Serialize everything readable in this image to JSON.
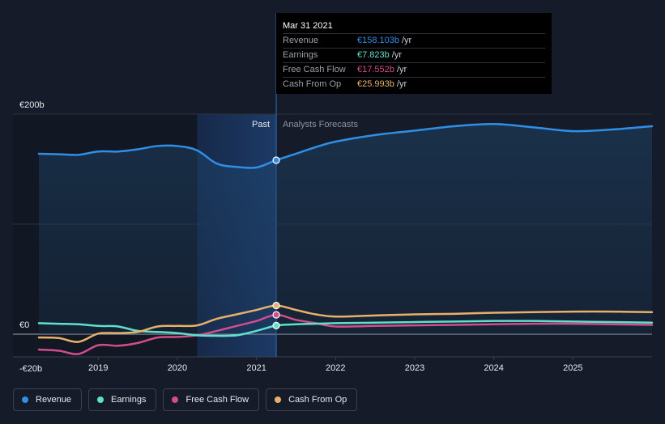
{
  "chart_data": {
    "type": "line",
    "y_unit_labels": [
      "€200b",
      "€0",
      "-€20b"
    ],
    "ylim": [
      -20,
      200
    ],
    "xlim": [
      2018.25,
      2026.0
    ],
    "x_ticks": [
      "2019",
      "2020",
      "2021",
      "2022",
      "2023",
      "2024",
      "2025"
    ],
    "x_tick_values": [
      2019,
      2020,
      2021,
      2022,
      2023,
      2024,
      2025
    ],
    "divider_x": 2021.25,
    "highlight_start_x": 2020.25,
    "past_label": "Past",
    "forecast_label": "Analysts Forecasts",
    "grid": true,
    "legend_position": "bottom-left",
    "series": [
      {
        "name": "Revenue",
        "color": "#2f8fe6",
        "x": [
          2018.25,
          2018.5,
          2018.75,
          2019.0,
          2019.25,
          2019.5,
          2019.75,
          2020.0,
          2020.25,
          2020.5,
          2020.75,
          2021.0,
          2021.25,
          2021.5,
          2021.75,
          2022.0,
          2022.5,
          2023.0,
          2023.5,
          2024.0,
          2024.5,
          2025.0,
          2025.5,
          2026.0
        ],
        "values": [
          164,
          163.5,
          163,
          166,
          166,
          168,
          171,
          171,
          167,
          155,
          152,
          151.5,
          158.1,
          164,
          170,
          175,
          181,
          185,
          189,
          191,
          188,
          184.5,
          186,
          189
        ]
      },
      {
        "name": "Earnings",
        "color": "#5fe0cf",
        "x": [
          2018.25,
          2018.5,
          2018.75,
          2019.0,
          2019.25,
          2019.5,
          2019.75,
          2020.0,
          2020.25,
          2020.5,
          2020.75,
          2021.0,
          2021.25,
          2021.5,
          2021.75,
          2022.0,
          2022.5,
          2023.0,
          2023.5,
          2024.0,
          2024.5,
          2025.0,
          2025.5,
          2026.0
        ],
        "values": [
          10,
          9.5,
          9,
          7.5,
          7,
          3,
          2,
          1,
          -1,
          -1.5,
          -1,
          3,
          7.8,
          9,
          9.5,
          10,
          10.5,
          11,
          11.5,
          12,
          12,
          11.5,
          11,
          10.5
        ]
      },
      {
        "name": "Free Cash Flow",
        "color": "#d14d8c",
        "x": [
          2018.25,
          2018.5,
          2018.75,
          2019.0,
          2019.25,
          2019.5,
          2019.75,
          2020.0,
          2020.25,
          2020.5,
          2020.75,
          2021.0,
          2021.25,
          2021.5,
          2021.75,
          2022.0,
          2022.5,
          2023.0,
          2023.5,
          2024.0,
          2024.5,
          2025.0,
          2025.5,
          2026.0
        ],
        "values": [
          -14,
          -15,
          -18,
          -10,
          -10.5,
          -8,
          -3,
          -2.5,
          -1,
          3,
          7.5,
          12,
          17.6,
          13,
          10,
          7,
          7.5,
          8,
          8.5,
          9,
          9.5,
          9.5,
          9,
          8.5
        ]
      },
      {
        "name": "Cash From Op",
        "color": "#e8b16a",
        "x": [
          2018.25,
          2018.5,
          2018.75,
          2019.0,
          2019.25,
          2019.5,
          2019.75,
          2020.0,
          2020.25,
          2020.5,
          2020.75,
          2021.0,
          2021.25,
          2021.5,
          2021.75,
          2022.0,
          2022.5,
          2023.0,
          2023.5,
          2024.0,
          2024.5,
          2025.0,
          2025.5,
          2026.0
        ],
        "values": [
          -3,
          -3.5,
          -7,
          0.5,
          1,
          2,
          7,
          7.5,
          8,
          14,
          18,
          22,
          26,
          22,
          18,
          16,
          17,
          18,
          18.5,
          19.5,
          20,
          20.5,
          20.5,
          20
        ]
      }
    ]
  },
  "tooltip": {
    "date": "Mar 31 2021",
    "unit": "/yr",
    "rows": [
      {
        "label": "Revenue",
        "value": "€158.103b",
        "color": "#2f8fe6"
      },
      {
        "label": "Earnings",
        "value": "€7.823b",
        "color": "#5fe0cf"
      },
      {
        "label": "Free Cash Flow",
        "value": "€17.552b",
        "color": "#d14d8c"
      },
      {
        "label": "Cash From Op",
        "value": "€25.993b",
        "color": "#e8b16a"
      }
    ]
  },
  "legend": [
    {
      "label": "Revenue",
      "color": "#2f8fe6"
    },
    {
      "label": "Earnings",
      "color": "#5fe0cf"
    },
    {
      "label": "Free Cash Flow",
      "color": "#d14d8c"
    },
    {
      "label": "Cash From Op",
      "color": "#e8b16a"
    }
  ]
}
